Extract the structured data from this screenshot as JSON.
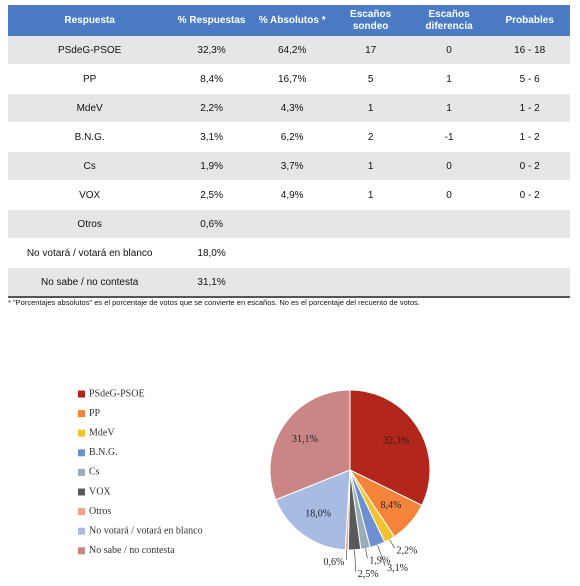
{
  "table": {
    "header": [
      "Respuesta",
      "% Respuestas",
      "% Absolutos *",
      "Escaños sondeo",
      "Escaños diferencia",
      "Probables"
    ],
    "rows": [
      [
        "PSdeG-PSOE",
        "32,3%",
        "64,2%",
        "17",
        "0",
        "16 - 18"
      ],
      [
        "PP",
        "8,4%",
        "16,7%",
        "5",
        "1",
        "5 - 6"
      ],
      [
        "MdeV",
        "2,2%",
        "4,3%",
        "1",
        "1",
        "1 - 2"
      ],
      [
        "B.N.G.",
        "3,1%",
        "6,2%",
        "2",
        "-1",
        "1 - 2"
      ],
      [
        "Cs",
        "1,9%",
        "3,7%",
        "1",
        "0",
        "0 - 2"
      ],
      [
        "VOX",
        "2,5%",
        "4,9%",
        "1",
        "0",
        "0 - 2"
      ],
      [
        "Otros",
        "0,6%"
      ],
      [
        "No votará / votará en blanco",
        "18,0%"
      ],
      [
        "No sabe / no contesta",
        "31,1%"
      ]
    ]
  },
  "footnote": "* \"Porcentajes absolutos\" es el porcentaje de votos que se convierte en escaños. No es el porcentaje del recuento de votos.",
  "chart_data": {
    "type": "pie",
    "categories": [
      "PSdeG-PSOE",
      "PP",
      "MdeV",
      "B.N.G.",
      "Cs",
      "VOX",
      "Otros",
      "No votará / votará en blanco",
      "No sabe / no contesta"
    ],
    "values": [
      32.3,
      8.4,
      2.2,
      3.1,
      1.9,
      2.5,
      0.6,
      18.0,
      31.1
    ],
    "value_labels": [
      "32,3%",
      "8,4%",
      "2,2%",
      "3,1%",
      "1,9%",
      "2,5%",
      "0,6%",
      "18,0%",
      "31,1%"
    ],
    "colors": [
      "#b3261b",
      "#f5843a",
      "#f2c230",
      "#6e90d0",
      "#9aabb9",
      "#5a5a5a",
      "#f0a48e",
      "#a8bbe2",
      "#c98684"
    ]
  }
}
